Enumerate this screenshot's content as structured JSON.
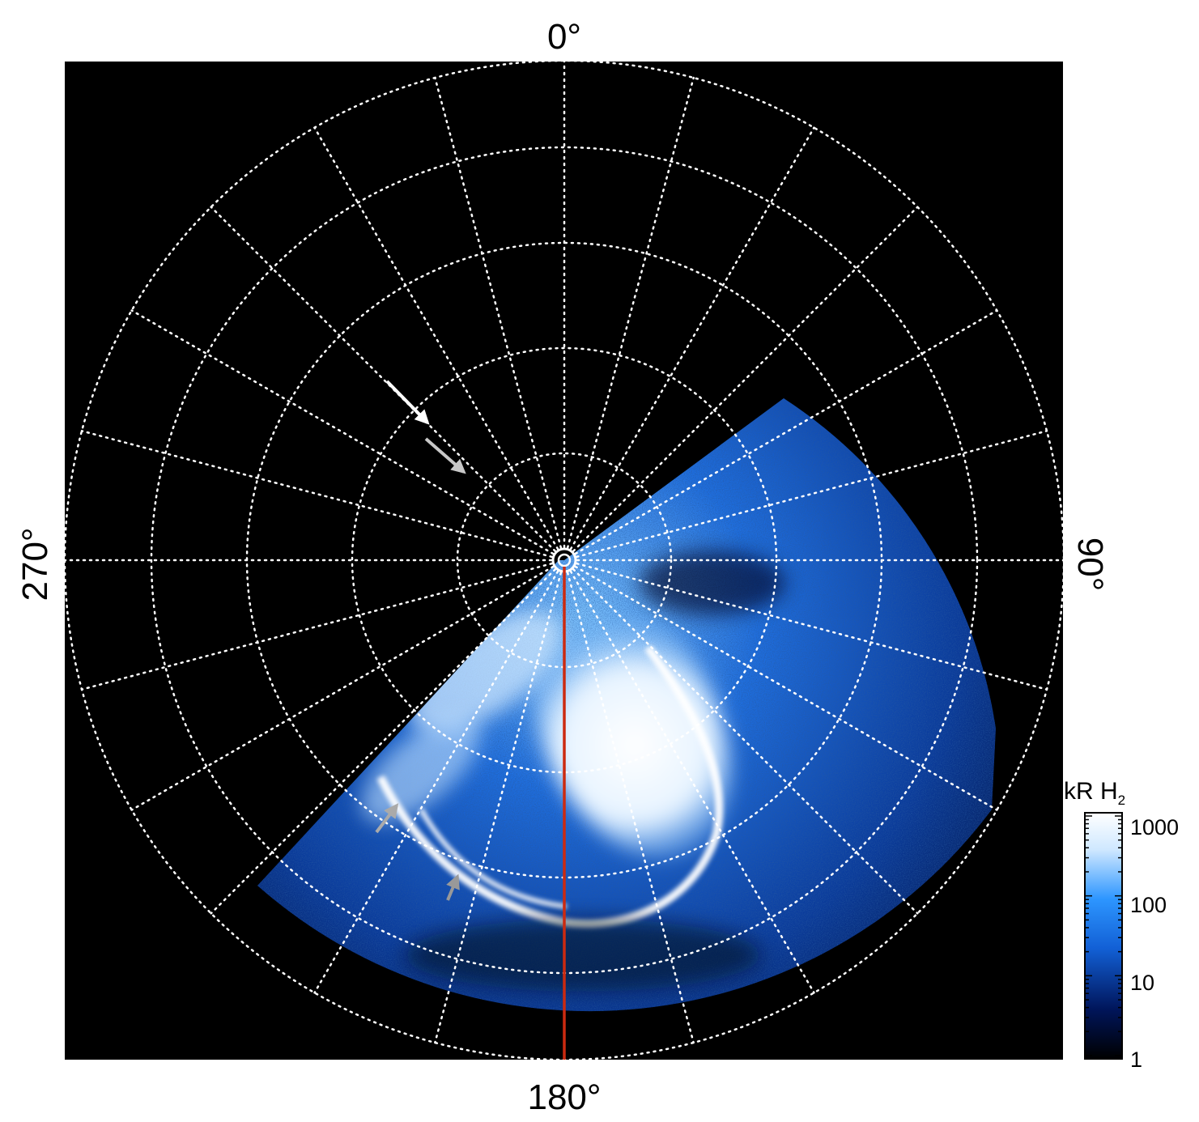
{
  "labels": {
    "top": "0°",
    "bottom": "180°",
    "left": "270°",
    "right": "90°"
  },
  "colorbar": {
    "unit_main": "kR H",
    "unit_sub": "2",
    "ticks": [
      "1000",
      "100",
      "10",
      "1"
    ],
    "scale": "log",
    "range": [
      1,
      1000
    ],
    "colors": [
      "#000000",
      "#00155a",
      "#1260d6",
      "#2d96ff",
      "#cfe8ff",
      "#ffffff"
    ]
  },
  "grid": {
    "style": "dotted",
    "color": "#ffffff",
    "meridian_count": 24,
    "circle_count": 5
  },
  "markers": {
    "meridian_line_color": "#cc2a10",
    "arrow_colors": [
      "#ffffff",
      "#c8c8c8",
      "#aaaaaa",
      "#999999"
    ]
  }
}
